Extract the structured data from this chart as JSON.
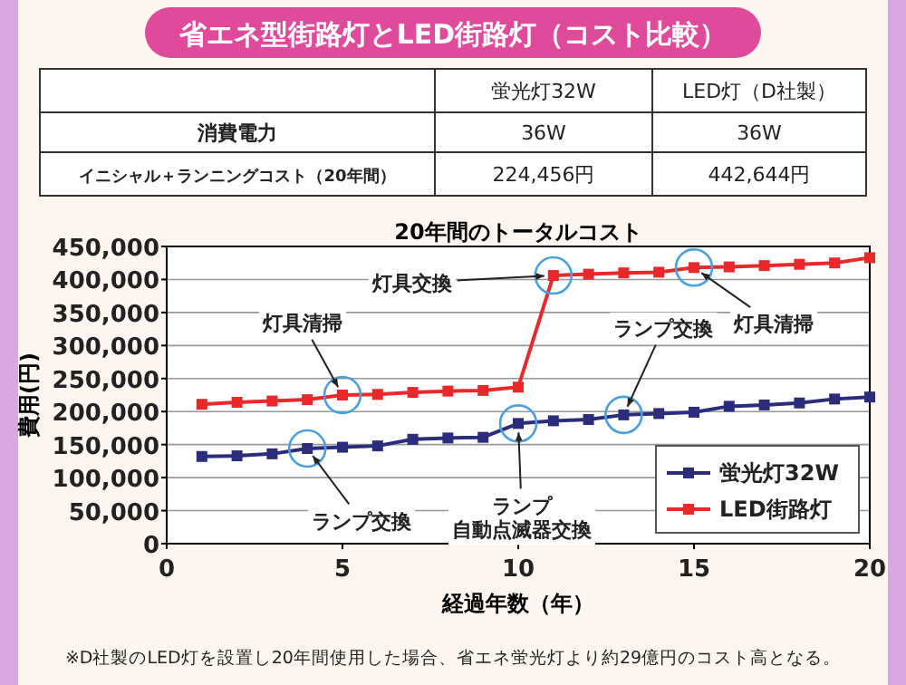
{
  "chart_data": [
    {
      "type": "other",
      "title": "省エネ型街路灯とLED街路灯（コスト比較）",
      "annotations": [
        "蛍光灯32W",
        "LED灯（D社製）",
        "消費電力",
        "36W",
        "36W",
        "イニシャル＋ランニングコスト（20年間）",
        "224,456円",
        "442,644円"
      ]
    },
    {
      "type": "line",
      "title": "20年間のトータルコスト",
      "xlabel": "経過年数（年）",
      "ylabel": "費用(円)",
      "x": [
        1,
        2,
        3,
        4,
        5,
        6,
        7,
        8,
        9,
        10,
        11,
        12,
        13,
        14,
        15,
        16,
        17,
        18,
        19,
        20
      ],
      "series": [
        {
          "name": "蛍光灯32W",
          "color": "#2b2d7a",
          "values": [
            132000,
            133000,
            136000,
            144000,
            146000,
            148000,
            158000,
            160000,
            161000,
            182000,
            186000,
            188000,
            195000,
            197000,
            199000,
            208000,
            210000,
            213000,
            219000,
            222000
          ]
        },
        {
          "name": "LED街路灯",
          "color": "#e8282a",
          "values": [
            211000,
            214000,
            216000,
            218000,
            225000,
            226000,
            229000,
            231000,
            232000,
            237000,
            406000,
            408000,
            410000,
            411000,
            418000,
            419000,
            421000,
            423000,
            425000,
            433000
          ]
        }
      ],
      "xlim": [
        0,
        20
      ],
      "ylim": [
        0,
        450000
      ],
      "xticks": [
        0,
        5,
        10,
        15,
        20
      ],
      "yticks": [
        {
          "value": 0,
          "label": "0"
        },
        {
          "value": 50000,
          "label": "50,000"
        },
        {
          "value": 100000,
          "label": "100,000"
        },
        {
          "value": 150000,
          "label": "150,000"
        },
        {
          "value": 200000,
          "label": "200,000"
        },
        {
          "value": 250000,
          "label": "250,000"
        },
        {
          "value": 300000,
          "label": "300,000"
        },
        {
          "value": 350000,
          "label": "350,000"
        },
        {
          "value": 400000,
          "label": "400,000"
        },
        {
          "value": 450000,
          "label": "450,000"
        }
      ],
      "grid": "y",
      "legend": "bottom right",
      "marker": "square",
      "line_style": "solid",
      "annotations": [
        {
          "text": "灯具交換",
          "x": 11,
          "y": 406000
        },
        {
          "text": "灯具清掃",
          "x": 5,
          "y": 225000
        },
        {
          "text": "灯具清掃",
          "x": 15,
          "y": 418000
        },
        {
          "text": "ランプ交換",
          "x": 13,
          "y": 195000
        },
        {
          "text": "ランプ交換",
          "x": 4,
          "y": 144000
        },
        {
          "text": "ランプ自動点滅器交換",
          "x": 10,
          "y": 182000
        },
        "※D社製のLED灯を設置し20年間使用した場合、省エネ蛍光灯より約29億円のコスト高となる。"
      ]
    }
  ]
}
